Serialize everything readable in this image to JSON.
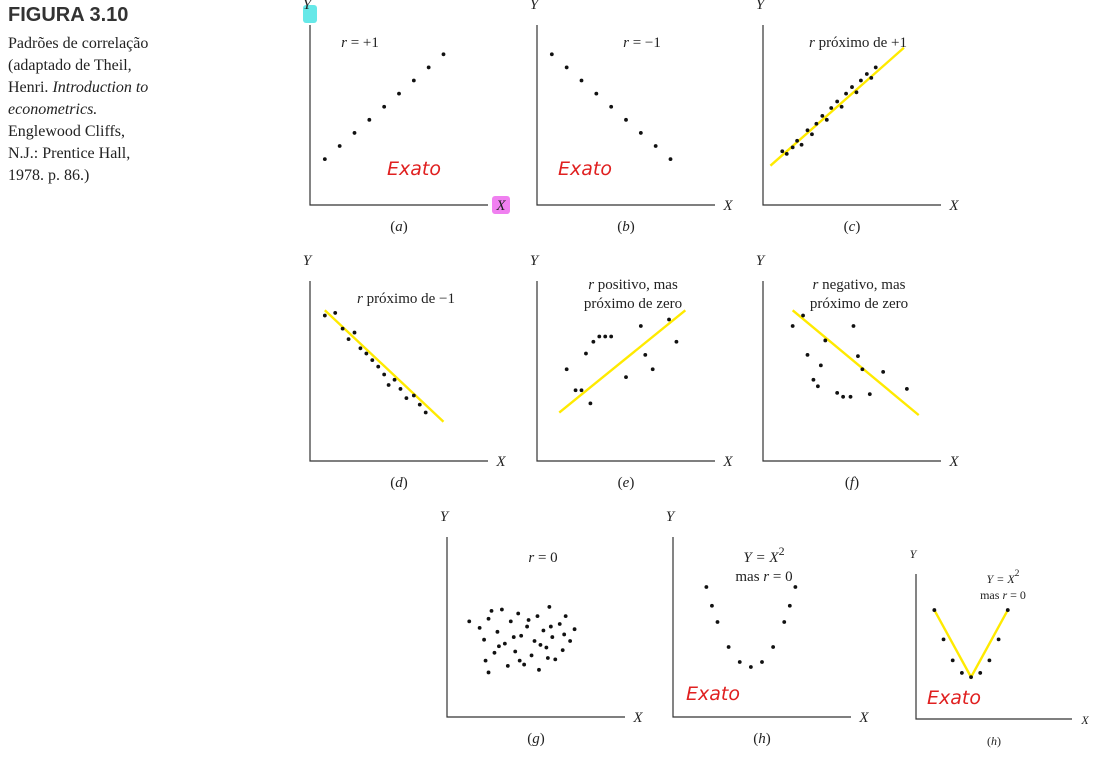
{
  "caption": {
    "figure_label": "FIGURA 3.10",
    "line1": "Padrões de correlação",
    "line2": "(adaptado de Theil,",
    "line3_a": "Henri. ",
    "line3_b": "Introduction to",
    "line4": "econometrics.",
    "line5": "Englewood Cliffs,",
    "line6": "N.J.: Prentice Hall,",
    "line7": "1978. p. 86.)"
  },
  "annotation_color": "#e02020",
  "fit_line_color": "#ffea00",
  "highlight_colors": {
    "y_axis": "#66e8e8",
    "x_axis": "#f080f0"
  },
  "chart_data": [
    {
      "id": "a",
      "type": "scatter",
      "sublabel": "(a)",
      "xlabel": "X",
      "ylabel": "Y",
      "title_lines": [
        "r = +1"
      ],
      "fit_line": false,
      "annotation": "Exato",
      "highlight_axes": true,
      "points": [
        [
          1,
          1
        ],
        [
          2,
          2
        ],
        [
          3,
          3
        ],
        [
          4,
          4
        ],
        [
          5,
          5
        ],
        [
          6,
          6
        ],
        [
          7,
          7
        ],
        [
          8,
          8
        ],
        [
          9,
          9
        ]
      ],
      "xlim": [
        0,
        12
      ],
      "ylim": [
        -2.5,
        12
      ]
    },
    {
      "id": "b",
      "type": "scatter",
      "sublabel": "(b)",
      "xlabel": "X",
      "ylabel": "Y",
      "title_lines": [
        "r = −1"
      ],
      "fit_line": false,
      "annotation": "Exato",
      "points": [
        [
          1,
          9
        ],
        [
          2,
          8
        ],
        [
          3,
          7
        ],
        [
          4,
          6
        ],
        [
          5,
          5
        ],
        [
          6,
          4
        ],
        [
          7,
          3
        ],
        [
          8,
          2
        ],
        [
          9,
          1
        ]
      ],
      "xlim": [
        0,
        12
      ],
      "ylim": [
        -2.5,
        12
      ]
    },
    {
      "id": "c",
      "type": "scatter",
      "sublabel": "(c)",
      "xlabel": "X",
      "ylabel": "Y",
      "title_lines": [
        "r próximo de +1"
      ],
      "fit_line": true,
      "fit": [
        [
          0.5,
          0.5
        ],
        [
          9.5,
          9.5
        ]
      ],
      "points": [
        [
          1.3,
          1.6
        ],
        [
          1.6,
          1.4
        ],
        [
          2,
          1.9
        ],
        [
          2.3,
          2.4
        ],
        [
          2.6,
          2.1
        ],
        [
          3,
          3.2
        ],
        [
          3.3,
          2.9
        ],
        [
          3.6,
          3.7
        ],
        [
          4,
          4.3
        ],
        [
          4.3,
          4
        ],
        [
          4.6,
          4.9
        ],
        [
          5,
          5.4
        ],
        [
          5.3,
          5
        ],
        [
          5.6,
          6
        ],
        [
          6,
          6.5
        ],
        [
          6.3,
          6.1
        ],
        [
          6.6,
          7
        ],
        [
          7,
          7.5
        ],
        [
          7.3,
          7.2
        ],
        [
          7.6,
          8
        ]
      ],
      "xlim": [
        0,
        12
      ],
      "ylim": [
        -2.5,
        12
      ]
    },
    {
      "id": "d",
      "type": "scatter",
      "sublabel": "(d)",
      "xlabel": "X",
      "ylabel": "Y",
      "title_lines": [
        "r próximo de −1"
      ],
      "fit_line": true,
      "fit": [
        [
          1,
          9
        ],
        [
          9,
          0.5
        ]
      ],
      "points": [
        [
          1,
          8.6
        ],
        [
          1.7,
          8.8
        ],
        [
          2.2,
          7.6
        ],
        [
          2.6,
          6.8
        ],
        [
          3,
          7.3
        ],
        [
          3.4,
          6.1
        ],
        [
          3.8,
          5.7
        ],
        [
          4.2,
          5.2
        ],
        [
          4.6,
          4.7
        ],
        [
          5,
          4.1
        ],
        [
          5.3,
          3.3
        ],
        [
          5.7,
          3.7
        ],
        [
          6.1,
          3
        ],
        [
          6.5,
          2.3
        ],
        [
          7,
          2.5
        ],
        [
          7.4,
          1.8
        ],
        [
          7.8,
          1.2
        ]
      ],
      "xlim": [
        0,
        12
      ],
      "ylim": [
        -2.5,
        12
      ]
    },
    {
      "id": "e",
      "type": "scatter",
      "sublabel": "(e)",
      "xlabel": "X",
      "ylabel": "Y",
      "title_lines": [
        "r positivo, mas",
        "próximo de zero"
      ],
      "fit_line": true,
      "fit": [
        [
          1.5,
          1.2
        ],
        [
          10,
          9
        ]
      ],
      "points": [
        [
          2,
          4.5
        ],
        [
          2.6,
          2.9
        ],
        [
          3,
          2.9
        ],
        [
          3.3,
          5.7
        ],
        [
          3.6,
          1.9
        ],
        [
          3.8,
          6.6
        ],
        [
          4.2,
          7
        ],
        [
          4.6,
          7
        ],
        [
          5,
          7
        ],
        [
          6,
          3.9
        ],
        [
          7,
          7.8
        ],
        [
          7.3,
          5.6
        ],
        [
          7.8,
          4.5
        ],
        [
          8.9,
          8.3
        ],
        [
          9.4,
          6.6
        ]
      ],
      "xlim": [
        0,
        12
      ],
      "ylim": [
        -2.5,
        12
      ]
    },
    {
      "id": "f",
      "type": "scatter",
      "sublabel": "(f)",
      "xlabel": "X",
      "ylabel": "Y",
      "title_lines": [
        "r negativo, mas",
        "próximo de zero"
      ],
      "fit_line": true,
      "fit": [
        [
          2,
          9
        ],
        [
          10.5,
          1
        ]
      ],
      "points": [
        [
          2,
          7.8
        ],
        [
          2.7,
          8.6
        ],
        [
          3,
          5.6
        ],
        [
          3.4,
          3.7
        ],
        [
          3.7,
          3.2
        ],
        [
          3.9,
          4.8
        ],
        [
          4.2,
          6.7
        ],
        [
          5,
          2.7
        ],
        [
          5.4,
          2.4
        ],
        [
          5.9,
          2.4
        ],
        [
          6.1,
          7.8
        ],
        [
          6.4,
          5.5
        ],
        [
          6.7,
          4.5
        ],
        [
          7.2,
          2.6
        ],
        [
          8.1,
          4.3
        ],
        [
          9.7,
          3
        ]
      ],
      "xlim": [
        0,
        12
      ],
      "ylim": [
        -2.5,
        12
      ]
    },
    {
      "id": "g",
      "type": "scatter",
      "sublabel": "(g)",
      "xlabel": "X",
      "ylabel": "Y",
      "title_lines": [
        "r = 0"
      ],
      "fit_line": false,
      "points": [
        [
          1.5,
          4.8
        ],
        [
          2.2,
          4.3
        ],
        [
          2.5,
          3.4
        ],
        [
          2.6,
          1.8
        ],
        [
          2.8,
          0.9
        ],
        [
          3,
          5.6
        ],
        [
          3.2,
          2.4
        ],
        [
          3.4,
          4
        ],
        [
          3.7,
          5.7
        ],
        [
          3.9,
          3.1
        ],
        [
          4.1,
          1.4
        ],
        [
          4.3,
          4.8
        ],
        [
          4.6,
          2.5
        ],
        [
          4.8,
          5.4
        ],
        [
          5,
          3.7
        ],
        [
          5.2,
          1.5
        ],
        [
          5.4,
          4.4
        ],
        [
          5.7,
          2.2
        ],
        [
          5.9,
          3.3
        ],
        [
          6.1,
          5.2
        ],
        [
          6.2,
          1.1
        ],
        [
          6.5,
          4.1
        ],
        [
          6.7,
          2.8
        ],
        [
          6.9,
          5.9
        ],
        [
          7.1,
          3.6
        ],
        [
          7.3,
          1.9
        ],
        [
          7.6,
          4.6
        ],
        [
          7.8,
          2.6
        ],
        [
          8,
          5.2
        ],
        [
          8.3,
          3.3
        ],
        [
          8.6,
          4.2
        ],
        [
          2.8,
          5
        ],
        [
          3.5,
          2.9
        ],
        [
          4.5,
          3.6
        ],
        [
          5.5,
          4.9
        ],
        [
          6.3,
          3
        ],
        [
          7,
          4.4
        ],
        [
          7.9,
          3.8
        ],
        [
          4.9,
          1.8
        ],
        [
          6.8,
          2
        ]
      ],
      "xlim": [
        0,
        12
      ],
      "ylim": [
        -2.5,
        12
      ]
    },
    {
      "id": "h",
      "type": "scatter",
      "sublabel": "(h)",
      "xlabel": "X",
      "ylabel": "Y",
      "title_lines": [
        "Y = X^2",
        "mas r = 0"
      ],
      "fit_line": false,
      "annotation": "Exato",
      "points": [
        [
          -4,
          16
        ],
        [
          -3.5,
          12.25
        ],
        [
          -3,
          9
        ],
        [
          -2,
          4
        ],
        [
          -1,
          1
        ],
        [
          0,
          0
        ],
        [
          1,
          1
        ],
        [
          2,
          4
        ],
        [
          3,
          9
        ],
        [
          3.5,
          12.25
        ],
        [
          4,
          16
        ]
      ],
      "xlim": [
        -7,
        9
      ],
      "ylim": [
        -10,
        28
      ]
    },
    {
      "id": "h2",
      "type": "scatter",
      "sublabel": "(h)",
      "xlabel": "X",
      "ylabel": "Y",
      "title_lines": [
        "Y = X^2",
        "mas r = 0"
      ],
      "fit_line": true,
      "fit_shape": "v",
      "annotation": "Exato",
      "fit": [
        [
          -4,
          16
        ],
        [
          0,
          0
        ],
        [
          4,
          16
        ]
      ],
      "points": [
        [
          -4,
          16
        ],
        [
          -3,
          9
        ],
        [
          -2,
          4
        ],
        [
          -1,
          1
        ],
        [
          0,
          0
        ],
        [
          1,
          1
        ],
        [
          2,
          4
        ],
        [
          3,
          9
        ],
        [
          4,
          16
        ]
      ],
      "xlim": [
        -6,
        11
      ],
      "ylim": [
        -10,
        27
      ]
    }
  ]
}
